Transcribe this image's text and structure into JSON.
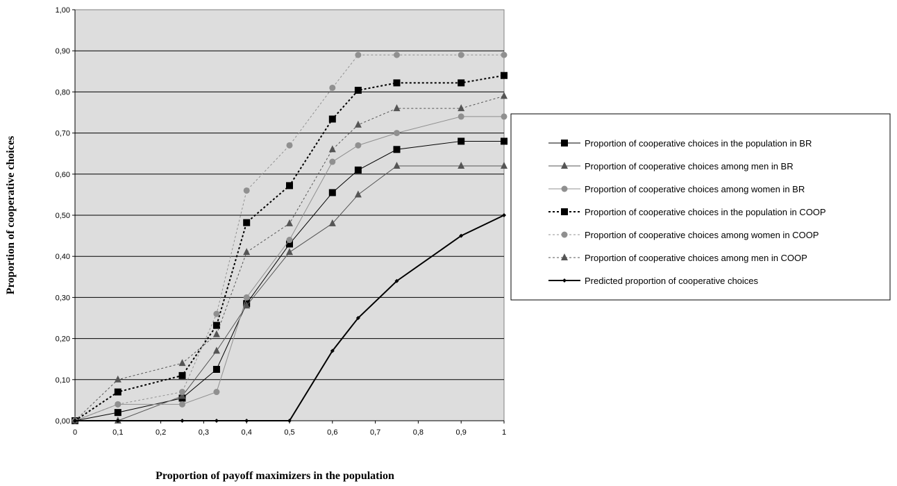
{
  "chart_data": {
    "type": "line",
    "title": "",
    "xlabel": "Proportion of payoff maximizers in the population",
    "ylabel": "Proportion of cooperative choices",
    "x": [
      0,
      0.1,
      0.25,
      0.33,
      0.4,
      0.5,
      0.6,
      0.66,
      0.75,
      0.9,
      1
    ],
    "x_ticks": [
      0,
      0.1,
      0.2,
      0.3,
      0.4,
      0.5,
      0.6,
      0.7,
      0.8,
      0.9,
      1
    ],
    "x_tick_labels": [
      "0",
      "0,1",
      "0,2",
      "0,3",
      "0,4",
      "0,5",
      "0,6",
      "0,7",
      "0,8",
      "0,9",
      "1"
    ],
    "y_ticks": [
      0,
      0.1,
      0.2,
      0.3,
      0.4,
      0.5,
      0.6,
      0.7,
      0.8,
      0.9,
      1.0
    ],
    "y_tick_labels": [
      "0,00",
      "0,10",
      "0,20",
      "0,30",
      "0,40",
      "0,50",
      "0,60",
      "0,70",
      "0,80",
      "0,90",
      "1,00"
    ],
    "xlim": [
      0,
      1
    ],
    "ylim": [
      0,
      1
    ],
    "grid": "horizontal",
    "legend_position": "right",
    "plot_background": "#dddddd",
    "series": [
      {
        "name": "Proportion of cooperative choices in the population in BR",
        "color": "#000000",
        "dash": "solid",
        "marker": "square",
        "width": 1,
        "values": [
          0,
          0.02,
          0.055,
          0.125,
          0.285,
          0.43,
          0.555,
          0.61,
          0.66,
          0.68,
          0.68
        ]
      },
      {
        "name": "Proportion of cooperative choices among men in BR",
        "color": "#555555",
        "dash": "solid",
        "marker": "triangle",
        "width": 1,
        "values": [
          0,
          0,
          0.06,
          0.17,
          0.28,
          0.41,
          0.48,
          0.55,
          0.62,
          0.62,
          0.62
        ]
      },
      {
        "name": "Proportion of cooperative choices among women in BR",
        "color": "#909090",
        "dash": "solid",
        "marker": "circle",
        "width": 1,
        "values": [
          0,
          0.04,
          0.04,
          0.07,
          0.3,
          0.44,
          0.63,
          0.67,
          0.7,
          0.74,
          0.74
        ]
      },
      {
        "name": "Proportion of cooperative choices in the population in COOP",
        "color": "#000000",
        "dash": "dotted",
        "marker": "square",
        "width": 2,
        "values": [
          0,
          0.07,
          0.11,
          0.232,
          0.482,
          0.572,
          0.734,
          0.804,
          0.822,
          0.822,
          0.84
        ]
      },
      {
        "name": "Proportion of cooperative choices among women in COOP",
        "color": "#909090",
        "dash": "dotted",
        "marker": "circle",
        "width": 1,
        "values": [
          0,
          0.04,
          0.07,
          0.26,
          0.56,
          0.67,
          0.81,
          0.89,
          0.89,
          0.89,
          0.89
        ]
      },
      {
        "name": "Proportion of cooperative choices among men in COOP",
        "color": "#555555",
        "dash": "dotted",
        "marker": "triangle",
        "width": 1,
        "values": [
          0,
          0.1,
          0.14,
          0.21,
          0.41,
          0.48,
          0.66,
          0.72,
          0.76,
          0.76,
          0.79
        ]
      },
      {
        "name": "Predicted proportion of cooperative choices",
        "color": "#000000",
        "dash": "solid",
        "marker": "diamond",
        "width": 2,
        "values": [
          0,
          0,
          0,
          0,
          0,
          0,
          0.17,
          0.25,
          0.34,
          0.45,
          0.5
        ]
      }
    ]
  }
}
